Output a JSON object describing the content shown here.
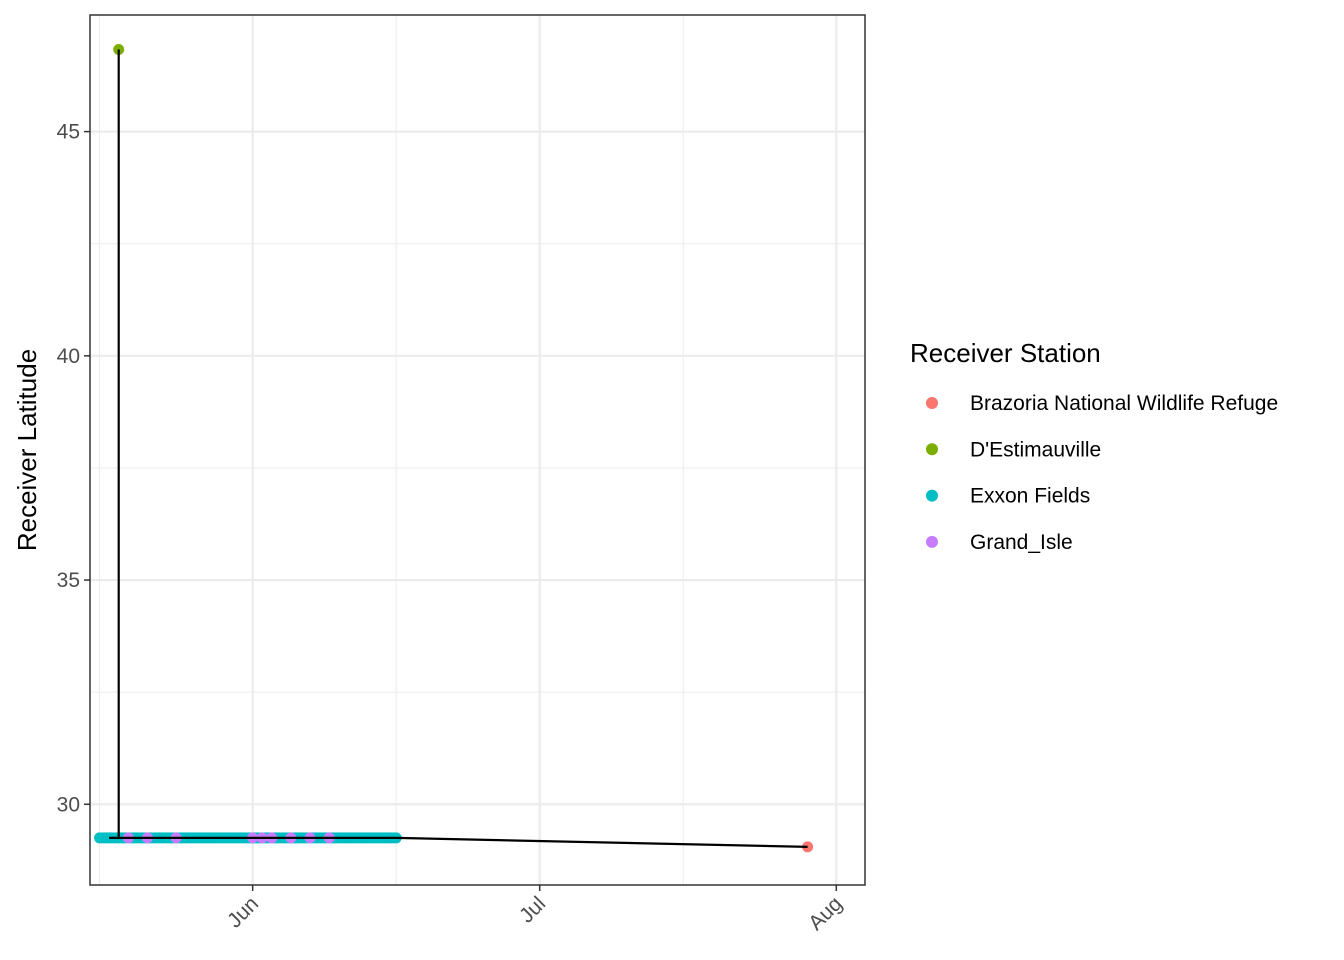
{
  "chart_data": {
    "type": "line",
    "title": "",
    "xlabel": "",
    "ylabel": "Receiver Latitude",
    "x_axis": {
      "type": "date",
      "range": [
        "2019-05-15",
        "2019-08-04"
      ],
      "major_ticks": [
        {
          "label": "Jun",
          "date": "2019-06-01"
        },
        {
          "label": "Jul",
          "date": "2019-07-01"
        },
        {
          "label": "Aug",
          "date": "2019-08-01"
        }
      ],
      "minor_ticks": [
        "2019-05-16",
        "2019-06-16",
        "2019-07-16"
      ],
      "tick_label_rotation_deg": -45
    },
    "y_axis": {
      "range": [
        28.2,
        47.6
      ],
      "major_ticks": [
        30,
        35,
        40,
        45
      ],
      "minor_ticks": [
        32.5,
        37.5,
        42.5
      ]
    },
    "grid": true,
    "line_color": "#000000",
    "legend": {
      "title": "Receiver Station",
      "position": "right",
      "items": [
        {
          "name": "Brazoria National Wildlife Refuge",
          "color": "#F8766D"
        },
        {
          "name": "D'Estimauville",
          "color": "#7CAE00"
        },
        {
          "name": "Exxon Fields",
          "color": "#00BFC4"
        },
        {
          "name": "Grand_Isle",
          "color": "#C77CFF"
        }
      ]
    },
    "series": [
      {
        "name": "Exxon Fields",
        "color": "#00BFC4",
        "x_range": [
          "2019-05-16",
          "2019-06-16"
        ],
        "y": 29.25
      },
      {
        "name": "Grand_Isle",
        "color": "#C77CFF",
        "x": [
          "2019-05-19",
          "2019-05-21",
          "2019-05-24",
          "2019-06-01",
          "2019-06-02",
          "2019-06-03",
          "2019-06-05",
          "2019-06-07",
          "2019-06-09"
        ],
        "y": 29.25
      },
      {
        "name": "D'Estimauville",
        "color": "#7CAE00",
        "x": [
          "2019-05-18"
        ],
        "y": [
          46.83
        ]
      },
      {
        "name": "Brazoria National Wildlife Refuge",
        "color": "#F8766D",
        "x": [
          "2019-07-29"
        ],
        "y": [
          29.05
        ]
      }
    ],
    "path": [
      {
        "x": "2019-05-17",
        "y": 29.25
      },
      {
        "x": "2019-05-18",
        "y": 29.25
      },
      {
        "x": "2019-05-18",
        "y": 46.83
      },
      {
        "x": "2019-05-18",
        "y": 29.25
      },
      {
        "x": "2019-06-16",
        "y": 29.25
      },
      {
        "x": "2019-07-29",
        "y": 29.05
      }
    ]
  }
}
